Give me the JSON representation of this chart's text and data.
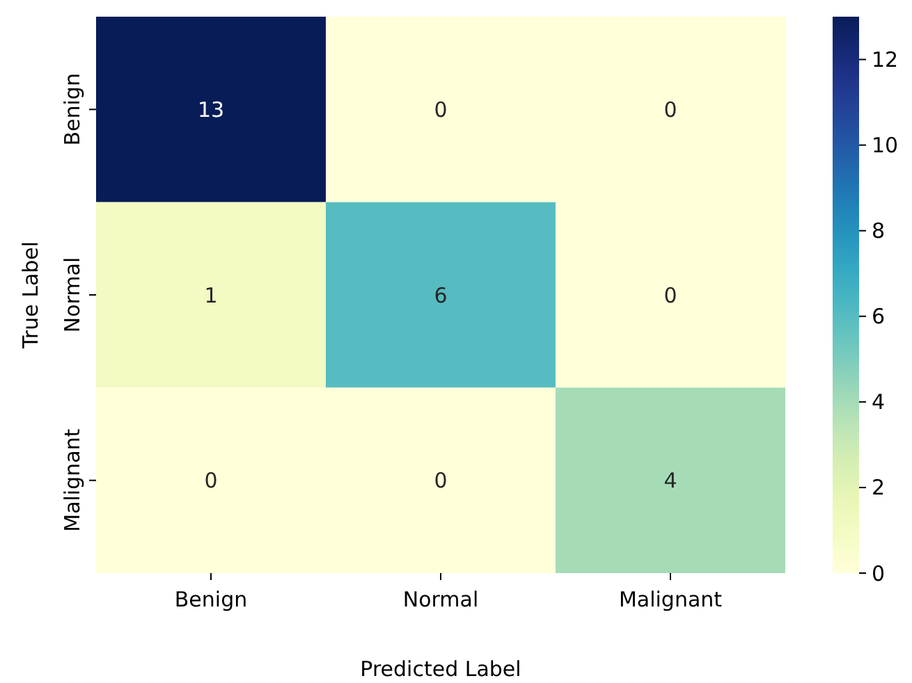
{
  "chart_data": {
    "type": "heatmap",
    "xlabel": "Predicted Label",
    "ylabel": "True Label",
    "categories": [
      "Benign",
      "Normal",
      "Malignant"
    ],
    "y_categories": [
      "Benign",
      "Normal",
      "Malignant"
    ],
    "cells": [
      [
        13,
        0,
        0
      ],
      [
        1,
        6,
        0
      ],
      [
        0,
        0,
        4
      ]
    ],
    "data_labels": true,
    "clim": [
      0,
      13
    ],
    "cticks": [
      0,
      2,
      4,
      6,
      8,
      10,
      12
    ]
  }
}
